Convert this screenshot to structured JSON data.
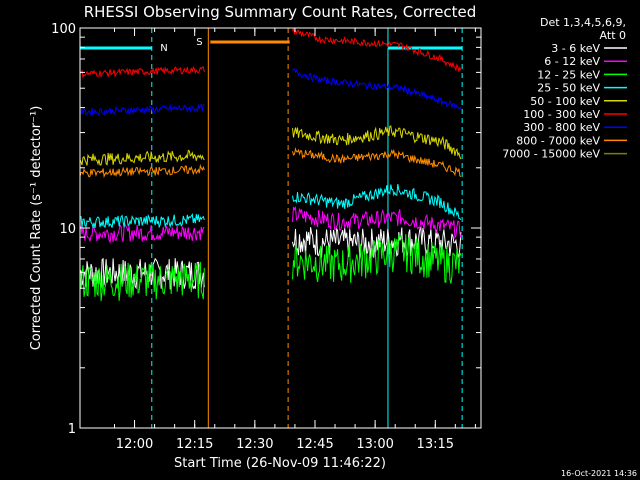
{
  "chart_data": {
    "type": "line",
    "title": "RHESSI Observing Summary Count Rates, Corrected",
    "ylabel": "Corrected Count Rate (s⁻¹ detector⁻¹)",
    "xlabel": "Start Time (26-Nov-09 11:46:22)",
    "y_scale": "log",
    "ylim": [
      1,
      100
    ],
    "xlim_minutes": [
      0,
      100
    ],
    "x_ticks": [
      {
        "label": "12:00",
        "minute": 13.6
      },
      {
        "label": "12:15",
        "minute": 28.6
      },
      {
        "label": "12:30",
        "minute": 43.6
      },
      {
        "label": "12:45",
        "minute": 58.6
      },
      {
        "label": "13:00",
        "minute": 73.6
      },
      {
        "label": "13:15",
        "minute": 88.6
      }
    ],
    "y_ticks": [
      {
        "label": "1",
        "value": 1
      },
      {
        "label": "10",
        "value": 10
      },
      {
        "label": "100",
        "value": 100
      }
    ],
    "legend_title": [
      "Det 1,3,4,5,6,9,",
      "Att 0"
    ],
    "legend_placement": "right",
    "series": [
      {
        "name": "3 - 6 keV",
        "color": "#ffffff"
      },
      {
        "name": "6 - 12 keV",
        "color": "#ff00ff"
      },
      {
        "name": "12 - 25 keV",
        "color": "#00ff00"
      },
      {
        "name": "25 - 50 keV",
        "color": "#00ffff"
      },
      {
        "name": "50 - 100 keV",
        "color": "#d8d800"
      },
      {
        "name": "100 - 300 keV",
        "color": "#ff0000"
      },
      {
        "name": "300 - 800 keV",
        "color": "#0000ff"
      },
      {
        "name": "800 - 7000 keV",
        "color": "#ff8c00"
      },
      {
        "name": "7000 - 15000 keV",
        "color": "#808000"
      }
    ],
    "flag_labels": {
      "night": "N",
      "saa": "S"
    },
    "timestamp": "16-Oct-2021 14:36"
  }
}
